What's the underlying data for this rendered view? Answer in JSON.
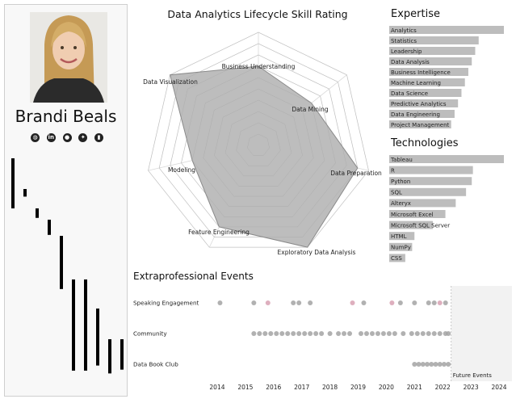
{
  "profile": {
    "name": "Brandi Beals",
    "social_icons": [
      "globe-icon",
      "linkedin-icon",
      "github-icon",
      "twitter-icon",
      "tableau-icon"
    ]
  },
  "sidebar_spark_values": [
    6.5,
    0.8,
    1.0,
    1.6,
    5.6,
    9.6,
    9.6,
    6.0,
    3.6,
    3.2
  ],
  "chart_data": [
    {
      "type": "radar",
      "title": "Data Analytics Lifecycle Skill Rating",
      "axes": [
        "Business Understanding",
        "Data Mining",
        "Data Preparation",
        "Exploratory Data Analysis",
        "Feature Engineering",
        "Modeling",
        "Data Visualization"
      ],
      "values": [
        7,
        6,
        9,
        10,
        8,
        6,
        10
      ],
      "max": 10,
      "rings": 10,
      "fill_color": "#bdbdbd"
    },
    {
      "type": "bar",
      "orientation": "horizontal",
      "title": "Expertise",
      "categories": [
        "Analytics",
        "Statistics",
        "Leadership",
        "Data Analysis",
        "Business Intelligence",
        "Machine Learning",
        "Data Science",
        "Predictive Analytics",
        "Data Engineering",
        "Project Management"
      ],
      "values": [
        10,
        7.8,
        7.5,
        7.2,
        6.9,
        6.6,
        6.3,
        6.0,
        5.7,
        5.4
      ],
      "max": 10,
      "bar_color": "#bdbdbd"
    },
    {
      "type": "bar",
      "orientation": "horizontal",
      "title": "Technologies",
      "categories": [
        "Tableau",
        "R",
        "Python",
        "SQL",
        "Alteryx",
        "Microsoft Excel",
        "Microsoft SQL Server",
        "HTML",
        "NumPy",
        "CSS"
      ],
      "values": [
        10,
        7.3,
        7.2,
        6.7,
        5.8,
        4.9,
        3.8,
        2.2,
        2.0,
        1.4
      ],
      "max": 10,
      "bar_color": "#bdbdbd"
    },
    {
      "type": "scatter",
      "title": "Extraprofessional Events",
      "categories": [
        "Speaking Engagement",
        "Community",
        "Data Book Club"
      ],
      "x_ticks": [
        "2014",
        "2015",
        "2016",
        "2017",
        "2018",
        "2019",
        "2020",
        "2021",
        "2022",
        "2023",
        "2024"
      ],
      "xlim": [
        2013.6,
        2024.4
      ],
      "future_start": 2022.3,
      "future_label": "Future Events",
      "point_color": "#a3a3a3",
      "highlight_color": "#d8a1b3",
      "points": [
        {
          "row": 0,
          "x": [
            2014.1,
            2015.3,
            2016.7,
            2016.9,
            2017.3,
            2019.2,
            2020.5,
            2021.0,
            2021.5,
            2021.7,
            2022.1
          ]
        },
        {
          "row": 0,
          "x": [
            2015.8,
            2018.8,
            2020.2,
            2021.9
          ],
          "highlight": true
        },
        {
          "row": 1,
          "x": [
            2015.3,
            2015.5,
            2015.7,
            2015.9,
            2016.1,
            2016.3,
            2016.5,
            2016.7,
            2016.9,
            2017.1,
            2017.3,
            2017.5,
            2017.7,
            2018.0,
            2018.3,
            2018.5,
            2018.7,
            2019.1,
            2019.3,
            2019.5,
            2019.7,
            2019.9,
            2020.1,
            2020.3,
            2020.6,
            2020.9,
            2021.1,
            2021.3,
            2021.5,
            2021.7,
            2021.9,
            2022.1,
            2022.2
          ]
        },
        {
          "row": 2,
          "x": [
            2021.0,
            2021.15,
            2021.3,
            2021.45,
            2021.6,
            2021.75,
            2021.9,
            2022.05,
            2022.2
          ]
        }
      ]
    }
  ]
}
